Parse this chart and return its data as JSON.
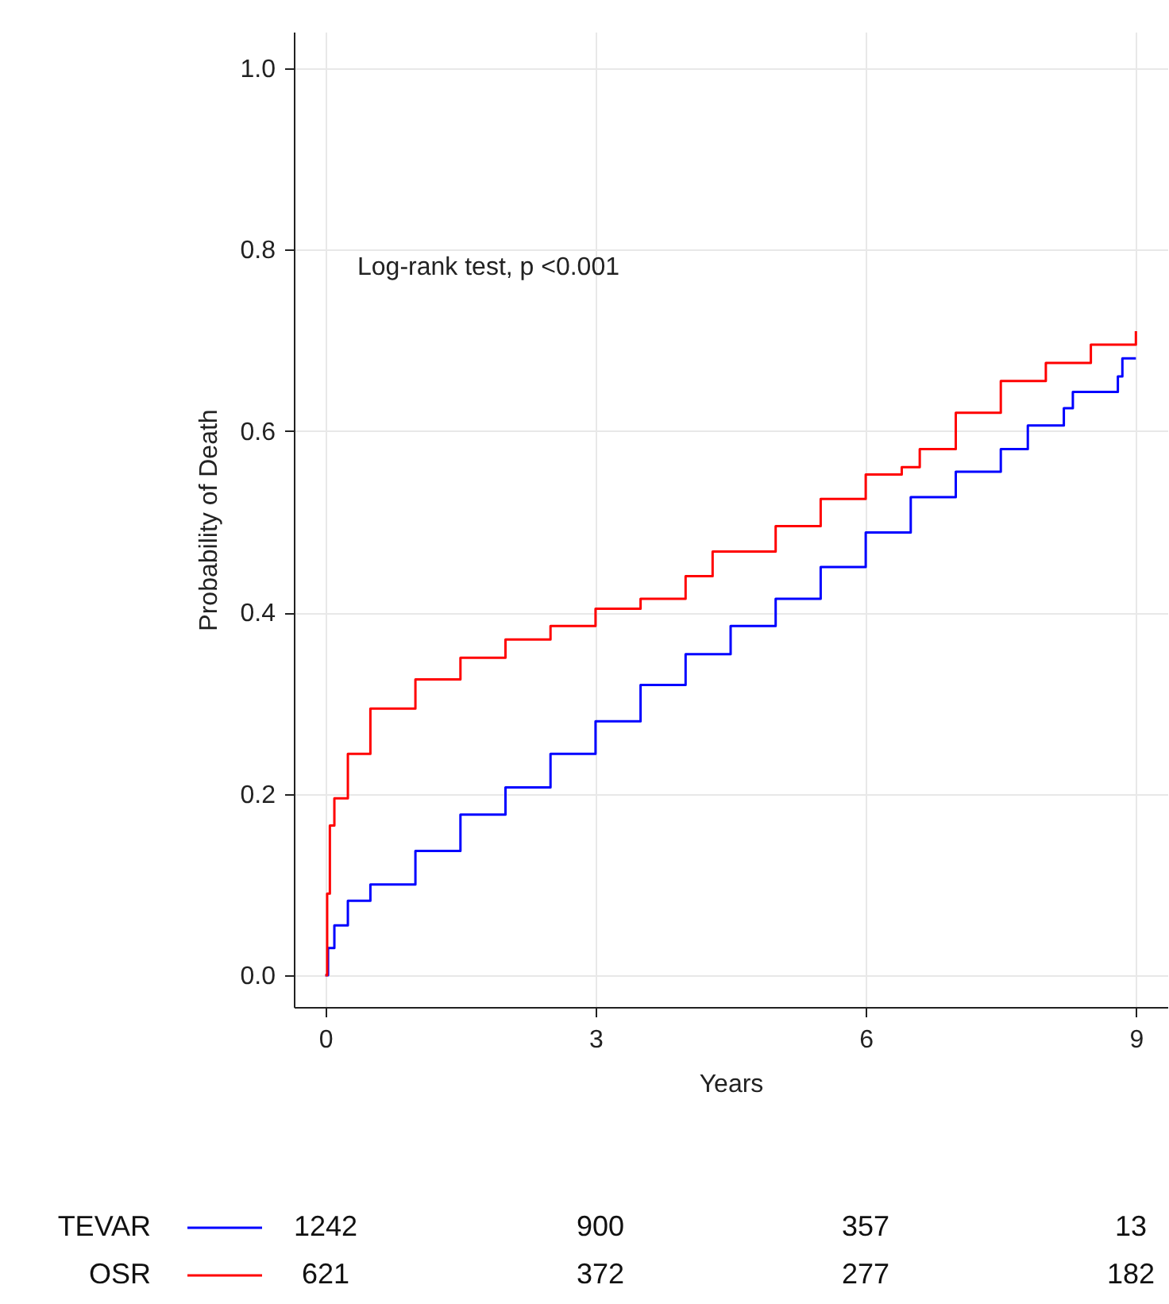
{
  "chart_data": [
    {
      "type": "step",
      "xlabel": "Years",
      "ylabel": "Probability of Death",
      "annotations": [
        "Log-rank test, p <0.001"
      ],
      "xlim": [
        -0.35,
        9.35
      ],
      "ylim": [
        -0.035,
        1.04
      ],
      "xticks": [
        0,
        3,
        6,
        9
      ],
      "yticks": [
        {
          "value": 0,
          "label": "0.0"
        },
        {
          "value": 0.2,
          "label": "0.2"
        },
        {
          "value": 0.4,
          "label": "0.4"
        },
        {
          "value": 0.6,
          "label": "0.6"
        },
        {
          "value": 0.8,
          "label": "0.8"
        },
        {
          "value": 1,
          "label": "1.0"
        }
      ],
      "grid": true,
      "legend": "bottom",
      "line_style": "solid",
      "series": [
        {
          "name": "TEVAR",
          "color": "#0000ff",
          "x": [
            0,
            0.03,
            0.1,
            0.25,
            0.5,
            1,
            1.5,
            2,
            2.5,
            3,
            3.5,
            4,
            4.5,
            5,
            5.5,
            6,
            6.5,
            7,
            7.5,
            7.8,
            8.2,
            8.3,
            8.75,
            8.8,
            8.85,
            9
          ],
          "values": [
            0,
            0.03,
            0.055,
            0.082,
            0.1,
            0.137,
            0.177,
            0.207,
            0.244,
            0.28,
            0.32,
            0.354,
            0.385,
            0.415,
            0.45,
            0.488,
            0.527,
            0.555,
            0.58,
            0.606,
            0.625,
            0.643,
            0.643,
            0.66,
            0.68,
            0.68
          ]
        },
        {
          "name": "OSR",
          "color": "#ff0000",
          "x": [
            0,
            0.02,
            0.05,
            0.1,
            0.25,
            0.5,
            1,
            1.5,
            2,
            2.5,
            3,
            3.5,
            4,
            4.3,
            4.6,
            5,
            5.5,
            6,
            6.4,
            6.6,
            7,
            7.5,
            8,
            8.5,
            8.8,
            9
          ],
          "values": [
            0,
            0.09,
            0.165,
            0.195,
            0.244,
            0.294,
            0.326,
            0.35,
            0.37,
            0.385,
            0.404,
            0.415,
            0.44,
            0.467,
            0.467,
            0.495,
            0.525,
            0.552,
            0.56,
            0.58,
            0.62,
            0.655,
            0.675,
            0.695,
            0.695,
            0.71
          ]
        }
      ]
    },
    {
      "type": "other",
      "annotations": [
        "1242",
        "900",
        "357",
        "13",
        "621",
        "372",
        "277",
        "182"
      ]
    }
  ]
}
